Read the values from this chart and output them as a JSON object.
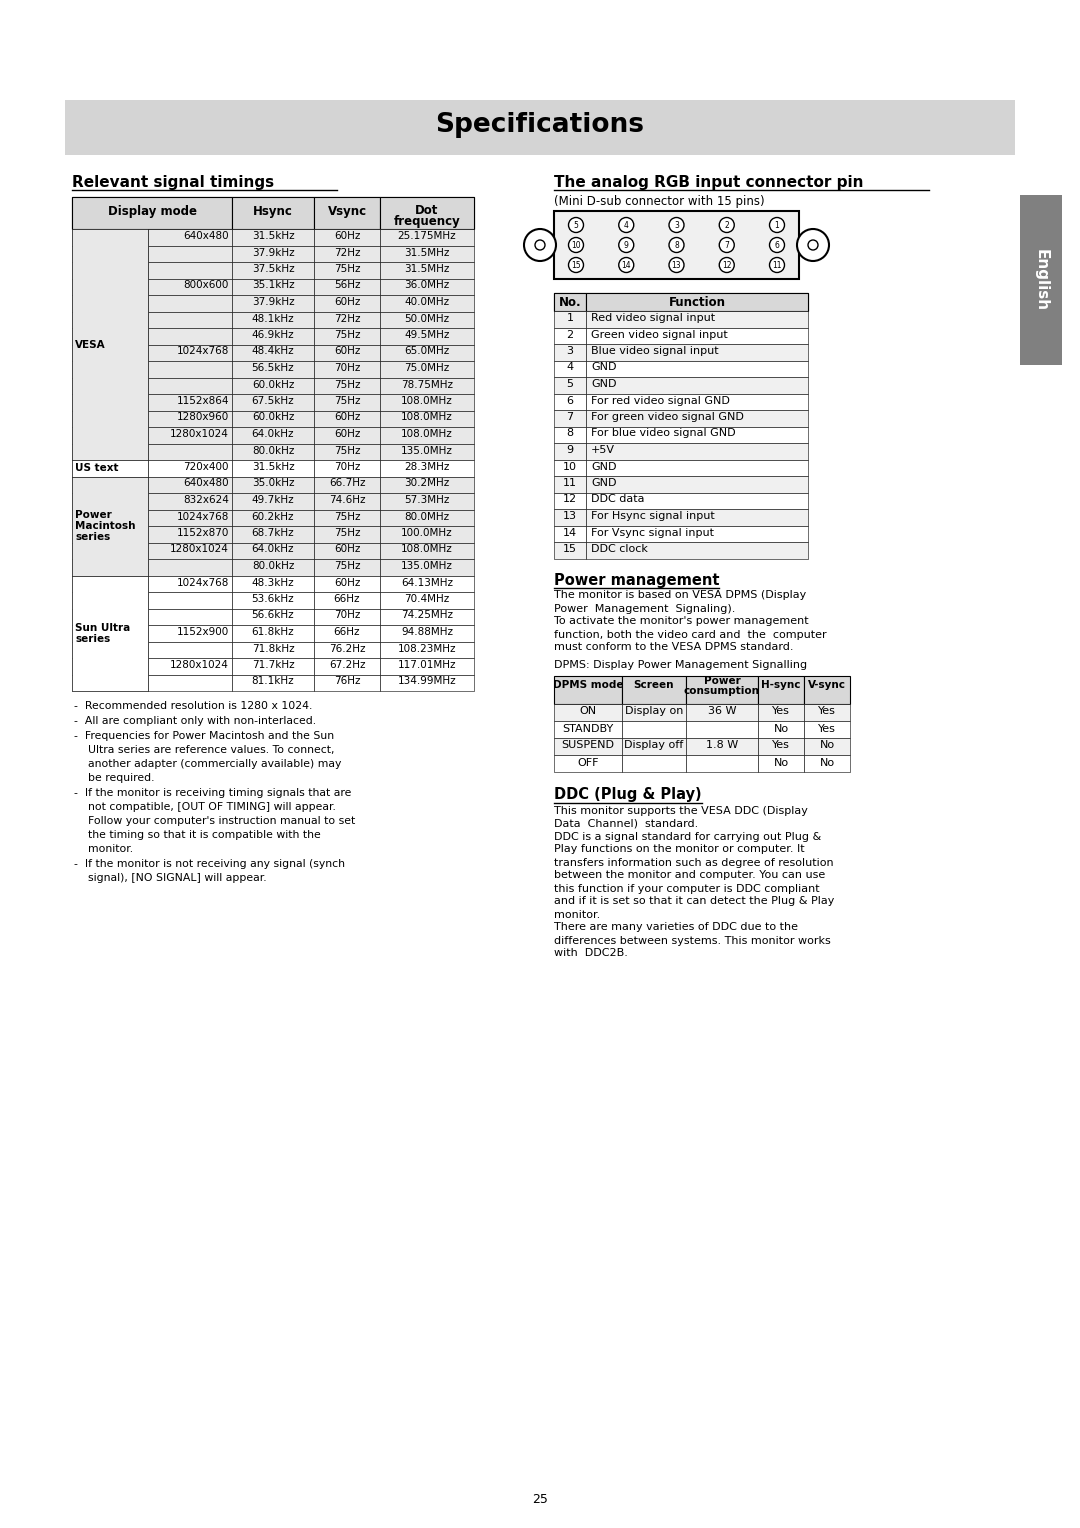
{
  "title": "Specifications",
  "title_bg": "#d4d4d4",
  "page_number": "25",
  "section1_title": "Relevant signal timings",
  "signal_table_rows": [
    [
      "VESA",
      "640x480",
      "31.5kHz",
      "60Hz",
      "25.175MHz"
    ],
    [
      "",
      "",
      "37.9kHz",
      "72Hz",
      "31.5MHz"
    ],
    [
      "",
      "",
      "37.5kHz",
      "75Hz",
      "31.5MHz"
    ],
    [
      "",
      "800x600",
      "35.1kHz",
      "56Hz",
      "36.0MHz"
    ],
    [
      "",
      "",
      "37.9kHz",
      "60Hz",
      "40.0MHz"
    ],
    [
      "",
      "",
      "48.1kHz",
      "72Hz",
      "50.0MHz"
    ],
    [
      "",
      "",
      "46.9kHz",
      "75Hz",
      "49.5MHz"
    ],
    [
      "",
      "1024x768",
      "48.4kHz",
      "60Hz",
      "65.0MHz"
    ],
    [
      "",
      "",
      "56.5kHz",
      "70Hz",
      "75.0MHz"
    ],
    [
      "",
      "",
      "60.0kHz",
      "75Hz",
      "78.75MHz"
    ],
    [
      "",
      "1152x864",
      "67.5kHz",
      "75Hz",
      "108.0MHz"
    ],
    [
      "",
      "1280x960",
      "60.0kHz",
      "60Hz",
      "108.0MHz"
    ],
    [
      "",
      "1280x1024",
      "64.0kHz",
      "60Hz",
      "108.0MHz"
    ],
    [
      "",
      "",
      "80.0kHz",
      "75Hz",
      "135.0MHz"
    ],
    [
      "US text",
      "720x400",
      "31.5kHz",
      "70Hz",
      "28.3MHz"
    ],
    [
      "Power",
      "640x480",
      "35.0kHz",
      "66.7Hz",
      "30.2MHz"
    ],
    [
      "Macintosh",
      "832x624",
      "49.7kHz",
      "74.6Hz",
      "57.3MHz"
    ],
    [
      "series",
      "1024x768",
      "60.2kHz",
      "75Hz",
      "80.0MHz"
    ],
    [
      "",
      "1152x870",
      "68.7kHz",
      "75Hz",
      "100.0MHz"
    ],
    [
      "",
      "1280x1024",
      "64.0kHz",
      "60Hz",
      "108.0MHz"
    ],
    [
      "",
      "",
      "80.0kHz",
      "75Hz",
      "135.0MHz"
    ],
    [
      "Sun Ultra",
      "1024x768",
      "48.3kHz",
      "60Hz",
      "64.13MHz"
    ],
    [
      "series",
      "",
      "53.6kHz",
      "66Hz",
      "70.4MHz"
    ],
    [
      "",
      "",
      "56.6kHz",
      "70Hz",
      "74.25MHz"
    ],
    [
      "",
      "1152x900",
      "61.8kHz",
      "66Hz",
      "94.88MHz"
    ],
    [
      "",
      "",
      "71.8kHz",
      "76.2Hz",
      "108.23MHz"
    ],
    [
      "",
      "1280x1024",
      "71.7kHz",
      "67.2Hz",
      "117.01MHz"
    ],
    [
      "",
      "",
      "81.1kHz",
      "76Hz",
      "134.99MHz"
    ]
  ],
  "cat_groups": [
    {
      "label": "VESA",
      "bold": true,
      "start": 0,
      "end": 13,
      "shade": "#e8e8e8"
    },
    {
      "label": "US text",
      "bold": true,
      "start": 14,
      "end": 14,
      "shade": "#ffffff"
    },
    {
      "label": "Power\nMacintosh\nseries",
      "bold": true,
      "start": 15,
      "end": 20,
      "shade": "#e8e8e8"
    },
    {
      "label": "Sun Ultra\nseries",
      "bold": true,
      "start": 21,
      "end": 27,
      "shade": "#ffffff"
    }
  ],
  "notes": [
    "Recommended resolution is 1280 x 1024.",
    "All are compliant only with non-interlaced.",
    "Frequencies for Power Macintosh and the Sun Ultra series are reference values. To connect, another adapter (commercially available) may be required.",
    "If the monitor is receiving timing signals that are not compatible, [OUT OF TIMING] will appear. Follow your computer's instruction manual to set the timing so that it is compatible with the monitor.",
    "If the monitor is not receiving any signal (synch signal), [NO SIGNAL] will appear."
  ],
  "note_wraps": [
    [
      "Recommended resolution is 1280 x 1024."
    ],
    [
      "All are compliant only with non-interlaced."
    ],
    [
      "Frequencies for Power Macintosh and the Sun",
      "Ultra series are reference values. To connect,",
      "another adapter (commercially available) may",
      "be required."
    ],
    [
      "If the monitor is receiving timing signals that are",
      "not compatible, [OUT OF TIMING] will appear.",
      "Follow your computer's instruction manual to set",
      "the timing so that it is compatible with the",
      "monitor."
    ],
    [
      "If the monitor is not receiving any signal (synch",
      "signal), [NO SIGNAL] will appear."
    ]
  ],
  "section2_title": "The analog RGB input connector pin",
  "connector_subtitle": "(Mini D-sub connector with 15 pins)",
  "connector_table_rows": [
    [
      "1",
      "Red video signal input"
    ],
    [
      "2",
      "Green video signal input"
    ],
    [
      "3",
      "Blue video signal input"
    ],
    [
      "4",
      "GND"
    ],
    [
      "5",
      "GND"
    ],
    [
      "6",
      "For red video signal GND"
    ],
    [
      "7",
      "For green video signal GND"
    ],
    [
      "8",
      "For blue video signal GND"
    ],
    [
      "9",
      "+5V"
    ],
    [
      "10",
      "GND"
    ],
    [
      "11",
      "GND"
    ],
    [
      "12",
      "DDC data"
    ],
    [
      "13",
      "For Hsync signal input"
    ],
    [
      "14",
      "For Vsync signal input"
    ],
    [
      "15",
      "DDC clock"
    ]
  ],
  "section3_title": "Power management",
  "power_text": [
    "The monitor is based on VESA DPMS (Display",
    "Power  Management  Signaling).",
    "To activate the monitor's power management",
    "function, both the video card and  the  computer",
    "must conform to the VESA DPMS standard."
  ],
  "power_dpms_title": "DPMS: Display Power Management Signalling",
  "power_table_rows": [
    [
      "ON",
      "Display on",
      "36 W",
      "Yes",
      "Yes"
    ],
    [
      "STANDBY",
      "",
      "",
      "No",
      "Yes"
    ],
    [
      "SUSPEND",
      "Display off",
      "1.8 W",
      "Yes",
      "No"
    ],
    [
      "OFF",
      "",
      "",
      "No",
      "No"
    ]
  ],
  "section4_title": "DDC (Plug & Play)",
  "ddc_lines": [
    "This monitor supports the VESA DDC (Display",
    "Data  Channel)  standard.",
    "DDC is a signal standard for carrying out Plug &",
    "Play functions on the monitor or computer. It",
    "transfers information such as degree of resolution",
    "between the monitor and computer. You can use",
    "this function if your computer is DDC compliant",
    "and if it is set so that it can detect the Plug & Play",
    "monitor.",
    "There are many varieties of DDC due to the",
    "differences between systems. This monitor works",
    "with  DDC2B."
  ],
  "sidebar_text": "English",
  "sidebar_bg": "#808080"
}
